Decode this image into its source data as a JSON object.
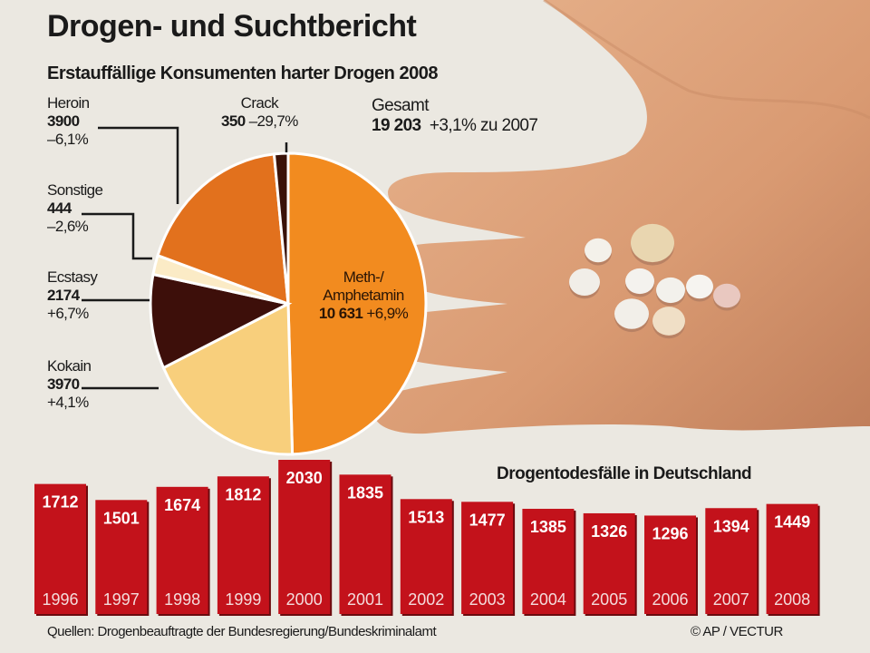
{
  "title": "Drogen- und Suchtbericht",
  "chart_data": [
    {
      "type": "pie",
      "title": "Erstauffällige Konsumenten harter Drogen 2008",
      "total": {
        "label": "Gesamt",
        "value": "19 203",
        "change": "+3,1% zu 2007"
      },
      "slices": [
        {
          "name": "Meth-/ Amphetamin",
          "value": 10631,
          "value_label": "10 631",
          "change": "+6,9%",
          "color": "#f28b1f"
        },
        {
          "name": "Kokain",
          "value": 3970,
          "value_label": "3970",
          "change": "+4,1%",
          "color": "#f8cf7c"
        },
        {
          "name": "Ecstasy",
          "value": 2174,
          "value_label": "2174",
          "change": "+6,7%",
          "color": "#3d0f0a"
        },
        {
          "name": "Sonstige",
          "value": 444,
          "value_label": "444",
          "change": "–2,6%",
          "color": "#fbebc6"
        },
        {
          "name": "Heroin",
          "value": 3900,
          "value_label": "3900",
          "change": "–6,1%",
          "color": "#e2711d"
        },
        {
          "name": "Crack",
          "value": 350,
          "value_label": "350",
          "change": "–29,7%",
          "color": "#3a1208"
        }
      ]
    },
    {
      "type": "bar",
      "title": "Drogentodesfälle in Deutschland",
      "categories": [
        "1996",
        "1997",
        "1998",
        "1999",
        "2000",
        "2001",
        "2002",
        "2003",
        "2004",
        "2005",
        "2006",
        "2007",
        "2008"
      ],
      "values": [
        1712,
        1501,
        1674,
        1812,
        2030,
        1835,
        1513,
        1477,
        1385,
        1326,
        1296,
        1394,
        1449
      ],
      "color": "#c3121b"
    }
  ],
  "footer": {
    "source": "Quellen: Drogenbeauftragte der Bundesregierung/Bundeskriminalamt",
    "credit": "© AP / VECTUR"
  }
}
